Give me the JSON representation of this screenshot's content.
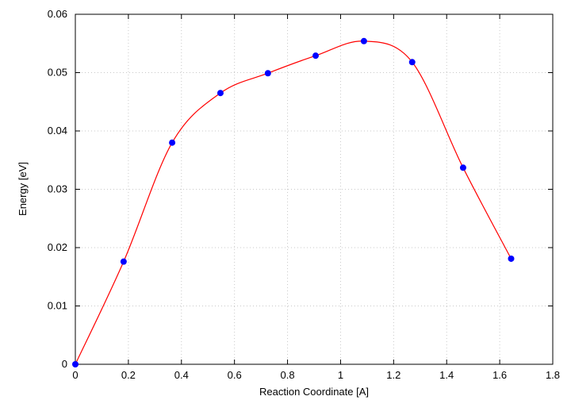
{
  "chart_data": {
    "type": "line",
    "title": "",
    "xlabel": "Reaction Coordinate [A]",
    "ylabel": "Energy [eV]",
    "xlim": [
      0,
      1.8
    ],
    "ylim": [
      0,
      0.06
    ],
    "grid": true,
    "x_ticks": [
      "0",
      "0.2",
      "0.4",
      "0.6",
      "0.8",
      "1",
      "1.2",
      "1.4",
      "1.6",
      "1.8"
    ],
    "x_tick_values": [
      0,
      0.2,
      0.4,
      0.6,
      0.8,
      1.0,
      1.2,
      1.4,
      1.6,
      1.8
    ],
    "y_ticks": [
      "0",
      "0.01",
      "0.02",
      "0.03",
      "0.04",
      "0.05",
      "0.06"
    ],
    "y_tick_values": [
      0,
      0.01,
      0.02,
      0.03,
      0.04,
      0.05,
      0.06
    ],
    "series": [
      {
        "x": [
          0.0,
          0.182,
          0.365,
          0.547,
          0.726,
          0.906,
          1.088,
          1.27,
          1.462,
          1.643
        ],
        "y": [
          0.0,
          0.0176,
          0.038,
          0.0465,
          0.0499,
          0.0529,
          0.0554,
          0.0518,
          0.0337,
          0.0181
        ],
        "line_color": "#ff0000",
        "marker_color": "#0000ff"
      }
    ]
  }
}
